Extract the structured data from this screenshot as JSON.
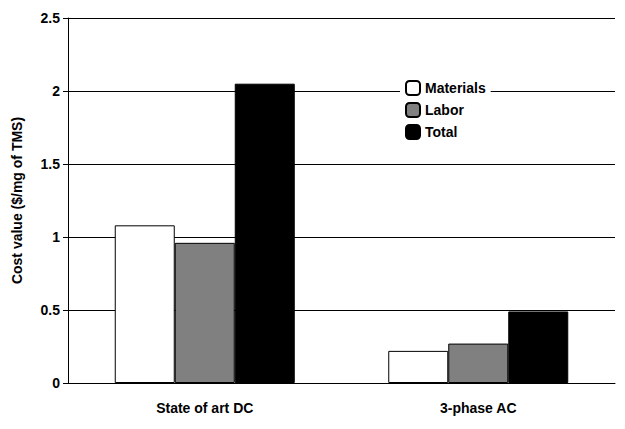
{
  "chart_data": {
    "type": "bar",
    "y_label": "Cost value ($/mg of TMS)",
    "categories": [
      "State of art DC",
      "3-phase AC"
    ],
    "series": [
      {
        "name": "Materials",
        "color": "#ffffff",
        "values": [
          1.08,
          0.22
        ]
      },
      {
        "name": "Labor",
        "color": "#808080",
        "values": [
          0.96,
          0.27
        ]
      },
      {
        "name": "Total",
        "color": "#000000",
        "values": [
          2.05,
          0.49
        ]
      }
    ],
    "ylim": [
      0,
      2.5
    ],
    "yticks": [
      0,
      0.5,
      1,
      1.5,
      2,
      2.5
    ],
    "grid": true,
    "legend": "upper right"
  }
}
